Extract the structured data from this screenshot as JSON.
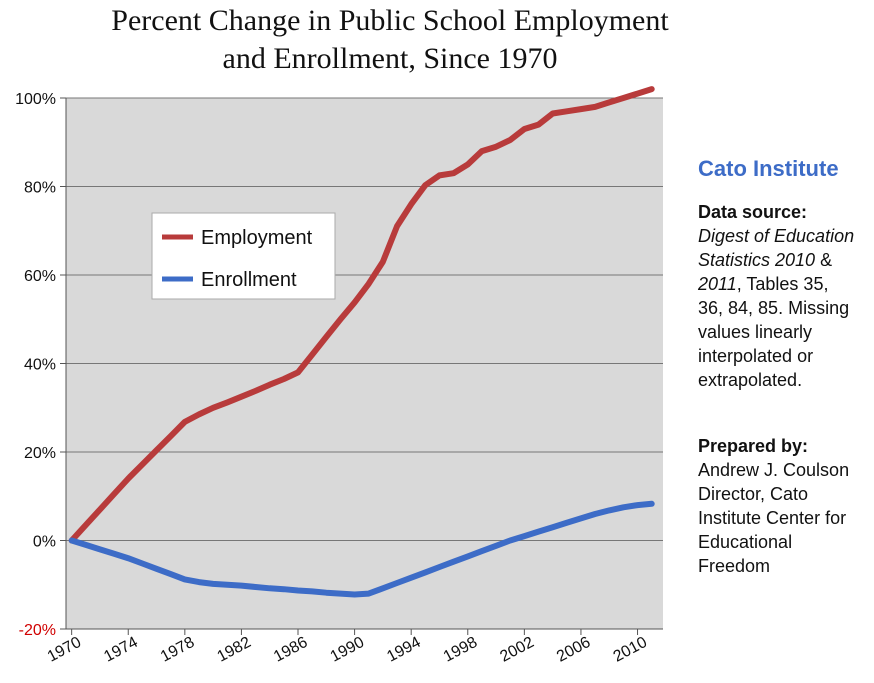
{
  "chart_data": {
    "type": "line",
    "title": [
      "Percent Change in Public School Employment",
      "and Enrollment, Since 1970"
    ],
    "ylim": [
      -20,
      100
    ],
    "yticks": [
      100,
      80,
      60,
      40,
      20,
      0,
      -20
    ],
    "ytick_labels": [
      "100%",
      "80%",
      "60%",
      "40%",
      "20%",
      "0%",
      "-20%"
    ],
    "xlim": [
      1969.6,
      2011.8
    ],
    "xticks": [
      1970,
      1974,
      1978,
      1982,
      1986,
      1990,
      1994,
      1998,
      2002,
      2006,
      2010
    ],
    "xtick_labels": [
      "1970",
      "1974",
      "1978",
      "1982",
      "1986",
      "1990",
      "1994",
      "1998",
      "2002",
      "2006",
      "2010"
    ],
    "grid": true,
    "legend_position": "upper-left",
    "x": [
      1970,
      1971,
      1972,
      1973,
      1974,
      1975,
      1976,
      1977,
      1978,
      1979,
      1980,
      1981,
      1982,
      1983,
      1984,
      1985,
      1986,
      1987,
      1988,
      1989,
      1990,
      1991,
      1992,
      1993,
      1994,
      1995,
      1996,
      1997,
      1998,
      1999,
      2000,
      2001,
      2002,
      2003,
      2004,
      2005,
      2006,
      2007,
      2008,
      2009,
      2010,
      2011
    ],
    "series": [
      {
        "name": "Employment",
        "color": "#b83b3b",
        "values": [
          0,
          3.5,
          7,
          10.5,
          14,
          17.2,
          20.4,
          23.6,
          26.8,
          28.5,
          30,
          31.2,
          32.5,
          33.8,
          35.2,
          36.5,
          38,
          42,
          46,
          50,
          53.8,
          58,
          63,
          71,
          76,
          80.3,
          82.5,
          83,
          85,
          88,
          89,
          90.5,
          93,
          94,
          96.5,
          97,
          97.5,
          98,
          99,
          100,
          101,
          102
        ]
      },
      {
        "name": "Enrollment",
        "color": "#3d6cc7",
        "values": [
          0,
          -1,
          -2,
          -3,
          -4,
          -5.2,
          -6.4,
          -7.6,
          -8.8,
          -9.4,
          -9.8,
          -10,
          -10.2,
          -10.5,
          -10.8,
          -11,
          -11.3,
          -11.5,
          -11.8,
          -12,
          -12.2,
          -12,
          -10.8,
          -9.6,
          -8.4,
          -7.2,
          -6,
          -4.8,
          -3.6,
          -2.4,
          -1.2,
          0,
          1,
          2,
          3,
          4,
          5,
          6,
          6.8,
          7.5,
          8,
          8.3
        ]
      }
    ]
  },
  "sidebar": {
    "brand": "Cato Institute",
    "source_heading": "Data source:",
    "source_italic_1": "Digest of Education",
    "source_italic_2": "Statistics 2010",
    "source_amp": " &",
    "source_italic_3": "2011",
    "source_rest_1": ", Tables 35,",
    "source_rest_2": "36, 84, 85.  Missing",
    "source_rest_3": "values linearly",
    "source_rest_4": "interpolated or",
    "source_rest_5": "extrapolated.",
    "prepared_heading": "Prepared by:",
    "prepared_1": "Andrew J. Coulson",
    "prepared_2": "Director, Cato",
    "prepared_3": "Institute Center for",
    "prepared_4": "Educational",
    "prepared_5": "Freedom"
  }
}
